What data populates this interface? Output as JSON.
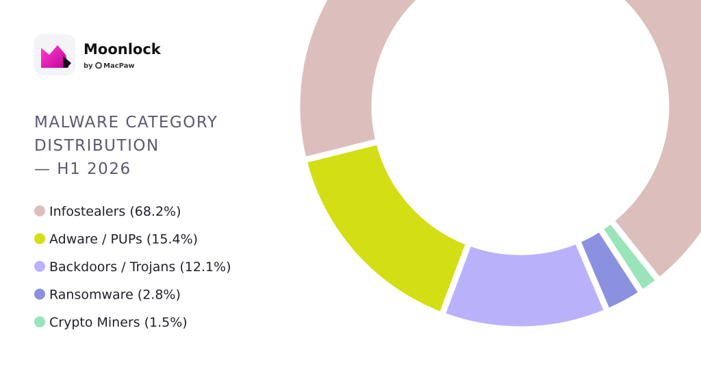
{
  "brand": {
    "name": "Moonlock",
    "by": "by",
    "company": "MacPaw"
  },
  "chart_data": {
    "type": "pie",
    "donut": true,
    "title": [
      "MALWARE CATEGORY",
      "DISTRIBUTION",
      "— H1 2026"
    ],
    "categories": [
      "Infostealers",
      "Adware / PUPs",
      "Backdoors / Trojans",
      "Ransomware",
      "Crypto Miners"
    ],
    "values": [
      68.2,
      15.4,
      12.1,
      2.8,
      1.5
    ],
    "value_labels": [
      "(68.2%)",
      "(15.4%)",
      "(12.1%)",
      "(2.8%)",
      "(1.5%)"
    ],
    "colors": [
      "#dcbfbd",
      "#d4de14",
      "#b9b2fb",
      "#8b91df",
      "#9ae4b9"
    ]
  }
}
